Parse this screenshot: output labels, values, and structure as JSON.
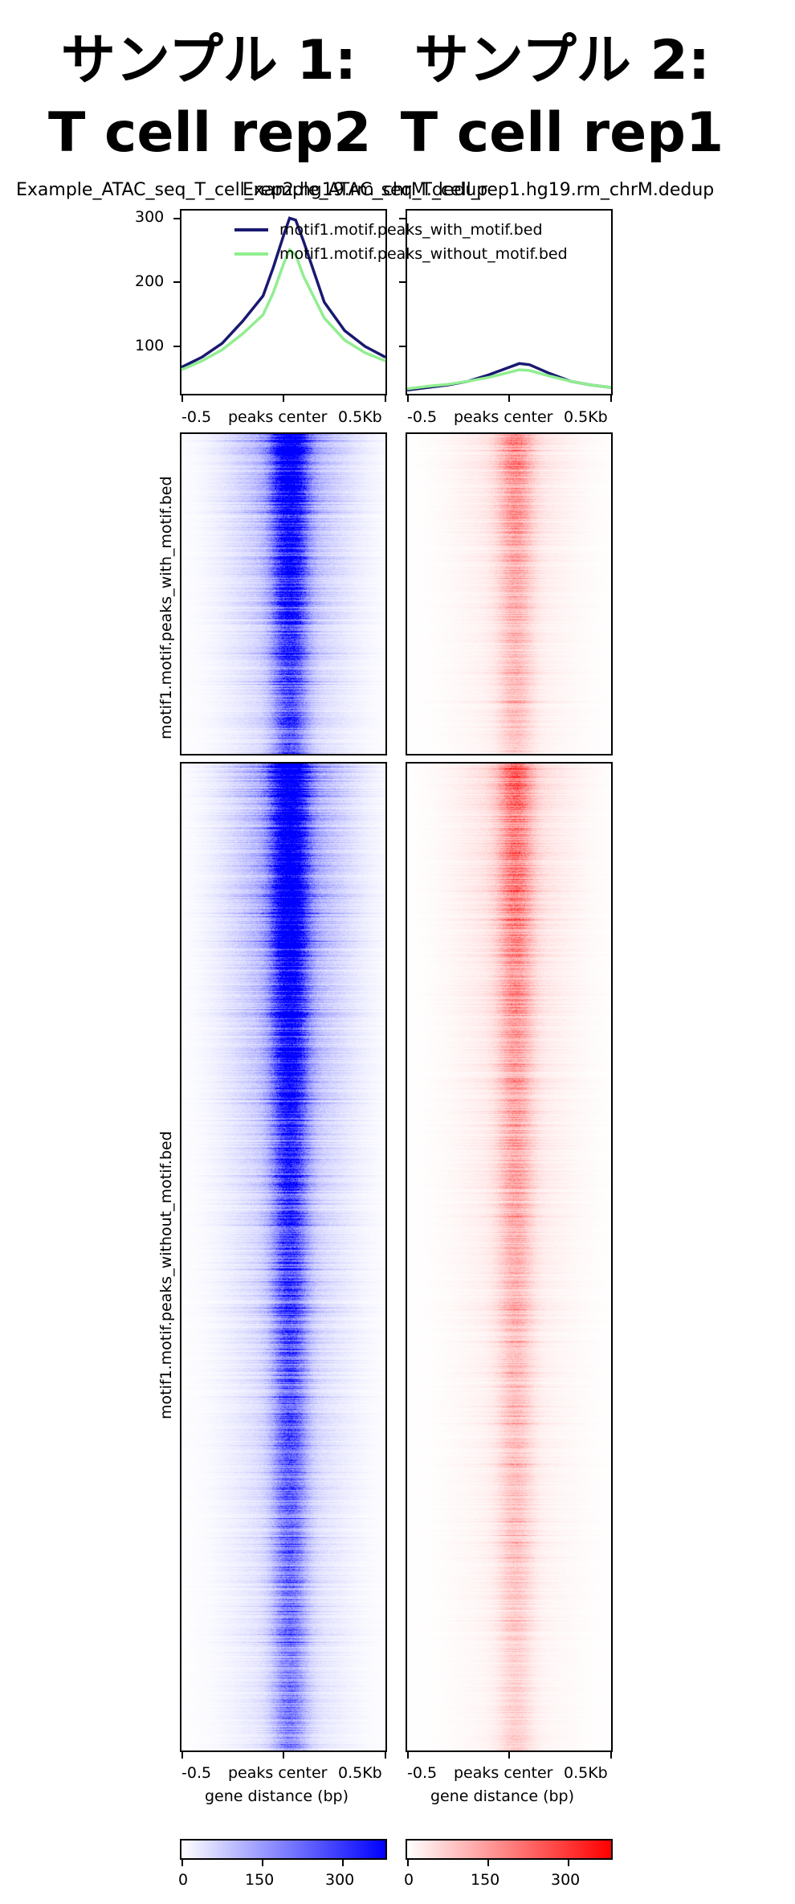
{
  "chart_data": {
    "type": "heatmap",
    "columns": [
      {
        "title_line1": "サンプル 1:",
        "title_line2": "T cell rep2",
        "sample_name": "Example_ATAC_seq_T_cell_rep2.hg19.rm_chrM.dedup",
        "colormap": {
          "low": "#ffffff",
          "high": "#0000ff"
        },
        "colorbar_ticks": [
          "0",
          "150",
          "300"
        ],
        "profile": {
          "ylim": [
            20,
            310
          ],
          "yticks": [
            "100",
            "200",
            "300"
          ],
          "series": [
            {
              "name": "motif1.motif.peaks_with_motif.bed",
              "color": "#191970",
              "x": [
                -0.5,
                -0.4,
                -0.3,
                -0.2,
                -0.1,
                -0.05,
                0.0,
                0.03,
                0.06,
                0.1,
                0.2,
                0.3,
                0.4,
                0.5
              ],
              "y": [
                62,
                78,
                100,
                135,
                175,
                220,
                270,
                298,
                295,
                260,
                165,
                120,
                95,
                78
              ]
            },
            {
              "name": "motif1.motif.peaks_without_motif.bed",
              "color": "#90ee90",
              "x": [
                -0.5,
                -0.4,
                -0.3,
                -0.2,
                -0.1,
                -0.05,
                0.0,
                0.03,
                0.06,
                0.1,
                0.2,
                0.3,
                0.4,
                0.5
              ],
              "y": [
                58,
                72,
                90,
                115,
                145,
                180,
                225,
                248,
                240,
                205,
                140,
                105,
                85,
                72
              ]
            }
          ]
        }
      },
      {
        "title_line1": "サンプル 2:",
        "title_line2": "T cell rep1",
        "sample_name": "Example_ATAC_seq_T_cell_rep1.hg19.rm_chrM.dedup",
        "colormap": {
          "low": "#ffffff",
          "high": "#ff0000"
        },
        "colorbar_ticks": [
          "0",
          "150",
          "300"
        ],
        "profile": {
          "ylim": [
            20,
            310
          ],
          "yticks": [],
          "series": [
            {
              "name": "motif1.motif.peaks_with_motif.bed",
              "color": "#191970",
              "x": [
                -0.5,
                -0.4,
                -0.3,
                -0.2,
                -0.1,
                0.0,
                0.05,
                0.1,
                0.2,
                0.3,
                0.4,
                0.5
              ],
              "y": [
                26,
                30,
                34,
                40,
                50,
                62,
                68,
                66,
                52,
                40,
                34,
                30
              ]
            },
            {
              "name": "motif1.motif.peaks_without_motif.bed",
              "color": "#90ee90",
              "x": [
                -0.5,
                -0.4,
                -0.3,
                -0.2,
                -0.1,
                0.0,
                0.05,
                0.1,
                0.2,
                0.3,
                0.4,
                0.5
              ],
              "y": [
                28,
                32,
                35,
                40,
                46,
                54,
                58,
                57,
                48,
                40,
                34,
                30
              ]
            }
          ]
        }
      }
    ],
    "rows": [
      {
        "label": "motif1.motif.peaks_with_motif.bed"
      },
      {
        "label": "motif1.motif.peaks_without_motif.bed"
      }
    ],
    "x_ticks": [
      "-0.5",
      "peaks center",
      "0.5Kb"
    ],
    "xlabel": "gene distance (bp)",
    "legend_entries": [
      "motif1.motif.peaks_with_motif.bed",
      "motif1.motif.peaks_without_motif.bed"
    ],
    "colorbar_range": [
      0,
      380
    ]
  }
}
